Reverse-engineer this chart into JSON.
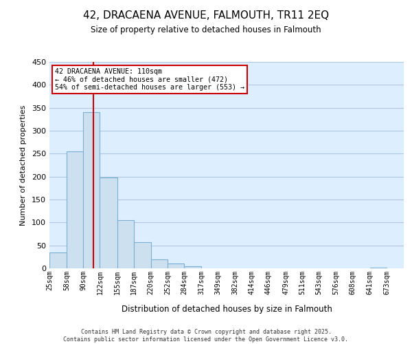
{
  "title": "42, DRACAENA AVENUE, FALMOUTH, TR11 2EQ",
  "subtitle": "Size of property relative to detached houses in Falmouth",
  "xlabel": "Distribution of detached houses by size in Falmouth",
  "ylabel": "Number of detached properties",
  "bar_color": "#cce0f0",
  "bar_edge_color": "#7ab0d4",
  "plot_bg_color": "#ddeeff",
  "background_color": "#ffffff",
  "grid_color": "#b0c8e0",
  "vline_color": "#cc0000",
  "vline_x": 110,
  "annotation_box": {
    "text_line1": "42 DRACAENA AVENUE: 110sqm",
    "text_line2": "← 46% of detached houses are smaller (472)",
    "text_line3": "54% of semi-detached houses are larger (553) →",
    "box_color": "#ffffff",
    "edge_color": "#cc0000"
  },
  "bins": [
    25,
    58,
    90,
    122,
    155,
    187,
    220,
    252,
    284,
    317,
    349,
    382,
    414,
    446,
    479,
    511,
    543,
    576,
    608,
    641,
    673,
    706
  ],
  "bin_labels": [
    "25sqm",
    "58sqm",
    "90sqm",
    "122sqm",
    "155sqm",
    "187sqm",
    "220sqm",
    "252sqm",
    "284sqm",
    "317sqm",
    "349sqm",
    "382sqm",
    "414sqm",
    "446sqm",
    "479sqm",
    "511sqm",
    "543sqm",
    "576sqm",
    "608sqm",
    "641sqm",
    "673sqm"
  ],
  "counts": [
    35,
    255,
    340,
    198,
    105,
    57,
    20,
    10,
    4,
    0,
    0,
    0,
    0,
    0,
    0,
    0,
    0,
    0,
    0,
    2,
    0
  ],
  "ylim": [
    0,
    450
  ],
  "yticks": [
    0,
    50,
    100,
    150,
    200,
    250,
    300,
    350,
    400,
    450
  ],
  "footer_line1": "Contains HM Land Registry data © Crown copyright and database right 2025.",
  "footer_line2": "Contains public sector information licensed under the Open Government Licence v3.0."
}
